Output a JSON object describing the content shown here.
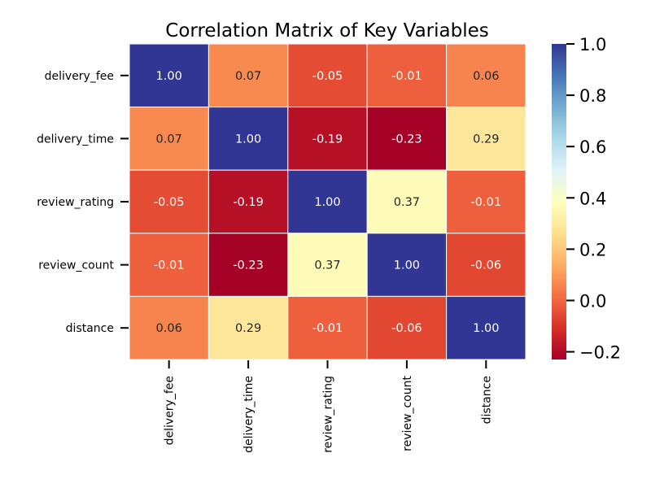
{
  "chart_data": {
    "type": "heatmap",
    "title": "Correlation Matrix of Key Variables",
    "rows": [
      "delivery_fee",
      "delivery_time",
      "review_rating",
      "review_count",
      "distance"
    ],
    "columns": [
      "delivery_fee",
      "delivery_time",
      "review_rating",
      "review_count",
      "distance"
    ],
    "values": [
      [
        1.0,
        0.07,
        -0.05,
        -0.01,
        0.06
      ],
      [
        0.07,
        1.0,
        -0.19,
        -0.23,
        0.29
      ],
      [
        -0.05,
        -0.19,
        1.0,
        0.37,
        -0.01
      ],
      [
        -0.01,
        -0.23,
        0.37,
        1.0,
        -0.06
      ],
      [
        0.06,
        0.29,
        -0.01,
        -0.06,
        1.0
      ]
    ],
    "cell_labels": [
      [
        "1.00",
        "0.07",
        "-0.05",
        "-0.01",
        "0.06"
      ],
      [
        "0.07",
        "1.00",
        "-0.19",
        "-0.23",
        "0.29"
      ],
      [
        "-0.05",
        "-0.19",
        "1.00",
        "0.37",
        "-0.01"
      ],
      [
        "-0.01",
        "-0.23",
        "0.37",
        "1.00",
        "-0.06"
      ],
      [
        "0.06",
        "0.29",
        "-0.01",
        "-0.06",
        "1.00"
      ]
    ],
    "colormap": "RdYlBu",
    "vmin": -0.23,
    "vmax": 1.0,
    "colorbar_ticks": [
      1.0,
      0.8,
      0.6,
      0.4,
      0.2,
      0.0,
      -0.2
    ],
    "colorbar_tick_labels": [
      "1.0",
      "0.8",
      "0.6",
      "0.4",
      "0.2",
      "0.0",
      "−0.2"
    ],
    "colors": {
      "cell_border": "#ffffff",
      "text_light": "#ffffff",
      "text_dark": "#262626"
    }
  }
}
